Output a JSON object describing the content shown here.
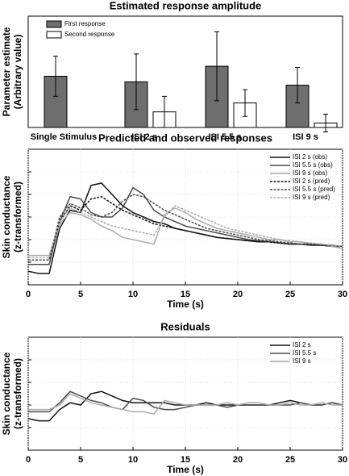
{
  "chart_data": [
    {
      "type": "bar",
      "title": "Estimated response amplitude",
      "ylabel": [
        "Parameter estimate",
        "(Arbitrary value)"
      ],
      "categories": [
        "Single Stimulus",
        "ISI 2 s",
        "ISI 5.5 s",
        "ISI 9 s"
      ],
      "series": [
        {
          "name": "First response",
          "color": "#6e6e6e",
          "values": [
            4.6,
            4.1,
            5.5,
            3.8
          ],
          "errors": [
            1.8,
            2.5,
            3.1,
            1.6
          ]
        },
        {
          "name": "Second response",
          "color": "#ffffff",
          "values": [
            null,
            1.4,
            2.2,
            0.4
          ],
          "errors": [
            null,
            1.4,
            1.2,
            0.8
          ]
        }
      ],
      "ylim": [
        0,
        10
      ],
      "legend": "upper left"
    },
    {
      "type": "line",
      "title": "Predicted and observed responses",
      "xlabel": "Time (s)",
      "ylabel": [
        "Skin conductance",
        "(z-transformed)"
      ],
      "x": [
        0,
        1,
        2,
        3,
        4,
        5,
        6,
        7,
        8,
        9,
        10,
        11,
        12,
        13,
        14,
        15,
        16,
        17,
        18,
        19,
        20,
        21,
        22,
        23,
        24,
        25,
        26,
        27,
        28,
        29,
        30
      ],
      "xlim": [
        0,
        30
      ],
      "xticks": [
        0,
        5,
        10,
        15,
        20,
        25,
        30
      ],
      "ylim": [
        -3,
        3
      ],
      "yticks": [
        -2,
        -1,
        0,
        1,
        2
      ],
      "grid": true,
      "legend": "upper right",
      "series": [
        {
          "name": "ISI 2 s (obs)",
          "color": "#111111",
          "dashed": false,
          "values": [
            -2.4,
            -2.5,
            -2.5,
            -0.5,
            0.3,
            0.2,
            1.4,
            1.5,
            1.0,
            0.5,
            0.2,
            0.0,
            -0.2,
            -0.3,
            -0.5,
            -0.6,
            -0.7,
            -0.8,
            -0.9,
            -0.95,
            -1.0,
            -1.05,
            -1.1,
            -1.1,
            -1.15,
            -1.2,
            -1.2,
            -1.25,
            -1.25,
            -1.3,
            -1.3
          ]
        },
        {
          "name": "ISI 5.5 s (obs)",
          "color": "#4a4a4a",
          "dashed": false,
          "values": [
            -2.1,
            -2.1,
            -2.1,
            -0.2,
            0.9,
            0.8,
            0.2,
            0.0,
            0.0,
            0.4,
            1.3,
            1.0,
            0.3,
            0.0,
            -0.2,
            -0.4,
            -0.5,
            -0.6,
            -0.7,
            -0.8,
            -0.9,
            -1.0,
            -1.05,
            -1.1,
            -1.15,
            -1.2,
            -1.2,
            -1.25,
            -1.25,
            -1.3,
            -1.3
          ]
        },
        {
          "name": "ISI 9 s (obs)",
          "color": "#aaaaaa",
          "dashed": false,
          "values": [
            -1.7,
            -1.7,
            -1.7,
            -0.3,
            0.2,
            0.1,
            -0.1,
            -0.4,
            -0.6,
            -0.9,
            -1.0,
            -1.1,
            -1.2,
            0.1,
            0.4,
            0.2,
            -0.1,
            -0.3,
            -0.5,
            -0.6,
            -0.7,
            -0.8,
            -0.9,
            -1.0,
            -1.0,
            -1.1,
            -1.1,
            -1.2,
            -1.2,
            -1.3,
            -1.4
          ]
        },
        {
          "name": "ISI 2 s (pred)",
          "color": "#111111",
          "dashed": true,
          "values": [
            -1.9,
            -1.9,
            -1.9,
            -0.2,
            0.5,
            0.3,
            0.8,
            0.9,
            0.6,
            0.3,
            0.1,
            -0.1,
            -0.3,
            -0.4,
            -0.5,
            -0.6,
            -0.7,
            -0.8,
            -0.9,
            -0.95,
            -1.0,
            -1.05,
            -1.1,
            -1.1,
            -1.15,
            -1.2,
            -1.2,
            -1.2,
            -1.25,
            -1.25,
            -1.3
          ]
        },
        {
          "name": "ISI 5.5 s (pred)",
          "color": "#4a4a4a",
          "dashed": true,
          "values": [
            -1.9,
            -1.9,
            -1.9,
            0.0,
            0.6,
            0.4,
            0.1,
            0.0,
            0.2,
            0.7,
            1.0,
            0.9,
            0.6,
            0.3,
            0.1,
            -0.1,
            -0.3,
            -0.5,
            -0.6,
            -0.7,
            -0.8,
            -0.9,
            -1.0,
            -1.05,
            -1.1,
            -1.15,
            -1.2,
            -1.2,
            -1.25,
            -1.25,
            -1.3
          ]
        },
        {
          "name": "ISI 9 s (pred)",
          "color": "#aaaaaa",
          "dashed": true,
          "values": [
            -1.8,
            -1.8,
            -1.8,
            -0.2,
            0.4,
            0.2,
            0.0,
            -0.2,
            -0.4,
            -0.5,
            -0.6,
            -0.7,
            -0.8,
            0.0,
            0.5,
            0.3,
            0.1,
            -0.1,
            -0.3,
            -0.5,
            -0.6,
            -0.7,
            -0.8,
            -0.9,
            -1.0,
            -1.05,
            -1.1,
            -1.15,
            -1.2,
            -1.25,
            -1.3
          ]
        }
      ]
    },
    {
      "type": "line",
      "title": "Residuals",
      "xlabel": "Time (s)",
      "ylabel": [
        "Skin conductance",
        "(z-transformed)"
      ],
      "x": [
        0,
        1,
        2,
        3,
        4,
        5,
        6,
        7,
        8,
        9,
        10,
        11,
        12,
        13,
        14,
        15,
        16,
        17,
        18,
        19,
        20,
        21,
        22,
        23,
        24,
        25,
        26,
        27,
        28,
        29,
        30
      ],
      "xlim": [
        0,
        30
      ],
      "xticks": [
        0,
        5,
        10,
        15,
        20,
        25,
        30
      ],
      "ylim": [
        -2,
        3
      ],
      "yticks": [
        -1,
        0,
        1,
        2
      ],
      "grid": true,
      "legend": "upper right",
      "series": [
        {
          "name": "ISI 2 s",
          "color": "#111111",
          "dashed": false,
          "values": [
            -0.6,
            -0.7,
            -0.7,
            -0.2,
            0.1,
            0.0,
            0.5,
            0.6,
            0.4,
            0.2,
            0.1,
            0.1,
            0.1,
            0.1,
            0.0,
            0.0,
            0.0,
            0.1,
            0.0,
            0.0,
            0.0,
            0.0,
            0.0,
            0.0,
            0.1,
            0.2,
            0.1,
            0.0,
            0.0,
            0.1,
            0.0
          ]
        },
        {
          "name": "ISI 5.5 s",
          "color": "#4a4a4a",
          "dashed": false,
          "values": [
            -0.3,
            -0.3,
            -0.3,
            0.1,
            0.6,
            0.4,
            0.2,
            0.1,
            -0.1,
            -0.2,
            0.3,
            0.2,
            -0.1,
            -0.2,
            -0.2,
            -0.1,
            0.0,
            0.0,
            0.0,
            -0.1,
            0.0,
            0.0,
            0.0,
            0.0,
            0.0,
            0.0,
            0.1,
            0.0,
            0.0,
            0.1,
            0.0
          ]
        },
        {
          "name": "ISI 9 s",
          "color": "#aaaaaa",
          "dashed": false,
          "values": [
            -0.2,
            -0.2,
            -0.2,
            0.0,
            0.5,
            0.3,
            0.1,
            0.0,
            -0.1,
            -0.2,
            -0.3,
            -0.3,
            -0.4,
            0.2,
            0.1,
            0.0,
            0.0,
            0.0,
            0.0,
            0.1,
            0.0,
            0.1,
            0.1,
            0.0,
            0.0,
            0.1,
            0.0,
            0.0,
            0.1,
            0.0,
            0.0
          ]
        }
      ]
    }
  ]
}
